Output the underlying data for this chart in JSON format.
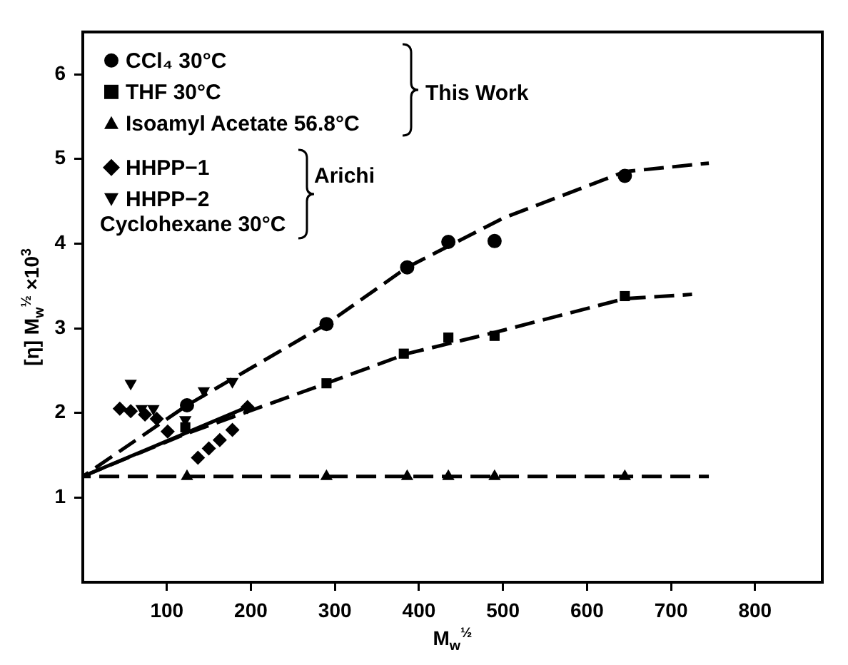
{
  "chart_data": {
    "type": "scatter",
    "xlabel": "M$_{w}$$^{½}$",
    "ylabel": "[η] M$_{w}$$^{½}$ ×10$^{3}$",
    "xlim": [
      0,
      880
    ],
    "ylim": [
      0,
      6.5
    ],
    "xticks": [
      100,
      200,
      300,
      400,
      500,
      600,
      700,
      800
    ],
    "yticks": [
      1,
      2,
      3,
      4,
      5,
      6
    ],
    "legend": "top left",
    "annotations": [
      "This Work",
      "Arichi",
      "Cyclohexane 30°C"
    ],
    "series": [
      {
        "type": "line",
        "color": "#000000",
        "marker": "none",
        "line_style": "dashed",
        "x": [
          0,
          124,
          290,
          386,
          500,
          645,
          745
        ],
        "values": [
          1.25,
          2.09,
          3.05,
          3.72,
          4.3,
          4.85,
          4.95
        ]
      },
      {
        "type": "line",
        "color": "#000000",
        "marker": "none",
        "line_style": "dashed",
        "x": [
          0,
          122,
          290,
          386,
          490,
          645,
          725
        ],
        "values": [
          1.25,
          1.75,
          2.35,
          2.7,
          2.95,
          3.35,
          3.4
        ]
      },
      {
        "type": "line",
        "color": "#000000",
        "marker": "none",
        "line_style": "dashed",
        "x": [
          0,
          745
        ],
        "values": [
          1.25,
          1.25
        ]
      },
      {
        "type": "line",
        "color": "#000000",
        "marker": "none",
        "line_style": "solid",
        "x": [
          0,
          196
        ],
        "values": [
          1.25,
          2.07
        ]
      },
      {
        "name": "CCl₄ 30°C",
        "color": "#000000",
        "marker": "circle",
        "x": [
          124,
          290,
          386,
          435,
          490,
          645
        ],
        "values": [
          2.09,
          3.05,
          3.72,
          4.02,
          4.03,
          4.8
        ]
      },
      {
        "name": "THF 30°C",
        "color": "#000000",
        "marker": "square",
        "x": [
          122,
          290,
          382,
          435,
          490,
          645
        ],
        "values": [
          1.83,
          2.35,
          2.7,
          2.89,
          2.91,
          3.38
        ]
      },
      {
        "name": "Isoamyl Acetate 56.8°C",
        "color": "#000000",
        "marker": "triangle",
        "x": [
          124,
          290,
          386,
          435,
          490,
          645
        ],
        "values": [
          1.25,
          1.25,
          1.25,
          1.25,
          1.25,
          1.25
        ]
      },
      {
        "name": "HHPP−1",
        "color": "#000000",
        "marker": "diamond",
        "x": [
          44,
          57,
          74,
          88,
          101,
          137,
          150,
          163,
          178,
          196
        ],
        "values": [
          2.05,
          2.02,
          1.98,
          1.93,
          1.78,
          1.47,
          1.58,
          1.68,
          1.8,
          2.07
        ]
      },
      {
        "name": "HHPP−2",
        "color": "#000000",
        "marker": "triangle_down",
        "x": [
          57,
          70,
          84,
          122,
          144,
          178
        ],
        "values": [
          2.35,
          2.05,
          2.05,
          1.92,
          2.26,
          2.37
        ]
      }
    ]
  }
}
